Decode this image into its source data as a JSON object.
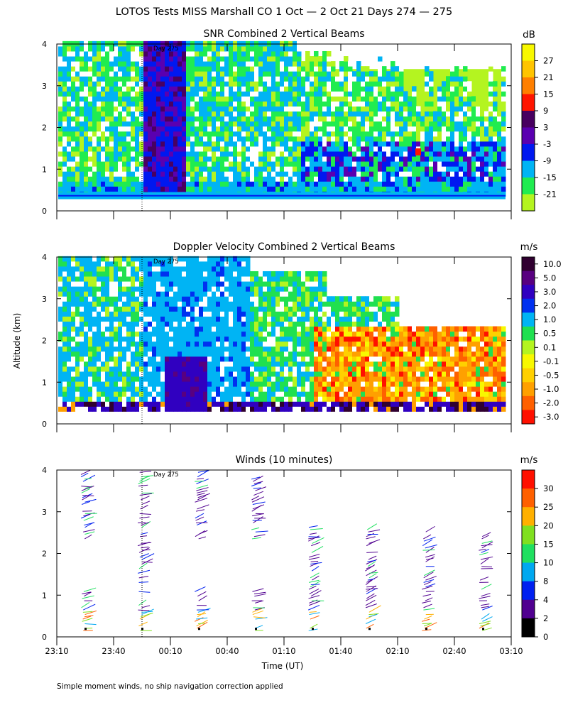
{
  "figure": {
    "title": "LOTOS Tests MISS Marshall CO   1 Oct —  2 Oct 21 Days 274 — 275",
    "ylabel": "Altitude (km)",
    "xlabel": "Time (UT)",
    "footnote": "Simple moment winds, no ship navigation correction applied",
    "day_marker": "Day 275"
  },
  "chart_data": [
    {
      "type": "heatmap",
      "title": "SNR Combined 2 Vertical Beams",
      "colorbar_unit": "dB",
      "colorbar_labels": [
        "27",
        "21",
        "15",
        "9",
        "3",
        "-3",
        "-9",
        "-15",
        "-21"
      ],
      "colorbar_colors": [
        "#f8f800",
        "#ffc400",
        "#ff7f00",
        "#ff1500",
        "#480060",
        "#5a00b0",
        "#0018f0",
        "#00b4f4",
        "#20ec50",
        "#b4f420"
      ],
      "ylim": [
        0,
        4
      ],
      "yticks": [
        "0",
        "1",
        "2",
        "3",
        "4"
      ],
      "xticks": [],
      "day_marker_time": "23:55"
    },
    {
      "type": "heatmap",
      "title": "Doppler Velocity Combined 2 Vertical Beams",
      "colorbar_unit": "m/s",
      "colorbar_labels": [
        "10.0",
        "5.0",
        "3.0",
        "2.0",
        "1.0",
        "0.5",
        "0.1",
        "-0.1",
        "-0.5",
        "-1.0",
        "-2.0",
        "-3.0"
      ],
      "colorbar_colors": [
        "#300030",
        "#580080",
        "#3000c0",
        "#0030f0",
        "#00b4f4",
        "#20e050",
        "#b4f420",
        "#f8f800",
        "#ffd000",
        "#ffa000",
        "#ff6000",
        "#ff1000"
      ],
      "ylim": [
        0,
        4
      ],
      "yticks": [
        "0",
        "1",
        "2",
        "3",
        "4"
      ],
      "xticks": [],
      "day_marker_time": "23:55"
    },
    {
      "type": "scatter",
      "title": "Winds (10 minutes)",
      "colorbar_unit": "m/s",
      "colorbar_labels": [
        "30",
        "25",
        "20",
        "15",
        "10",
        "8",
        "4",
        "2",
        "0"
      ],
      "colorbar_colors": [
        "#ff1000",
        "#ff6000",
        "#ffb000",
        "#80e020",
        "#20e060",
        "#00a8f0",
        "#0020f0",
        "#500090",
        "#000000"
      ],
      "ylim": [
        0,
        4
      ],
      "yticks": [
        "0",
        "1",
        "2",
        "3",
        "4"
      ],
      "xticks": [
        "23:10",
        "23:40",
        "00:10",
        "00:40",
        "01:10",
        "01:40",
        "02:10",
        "02:40",
        "03:10"
      ],
      "day_marker_time": "23:55",
      "profile_times": [
        "23:25",
        "23:55",
        "00:25",
        "00:55",
        "01:25",
        "01:55",
        "02:25",
        "02:55"
      ]
    }
  ]
}
